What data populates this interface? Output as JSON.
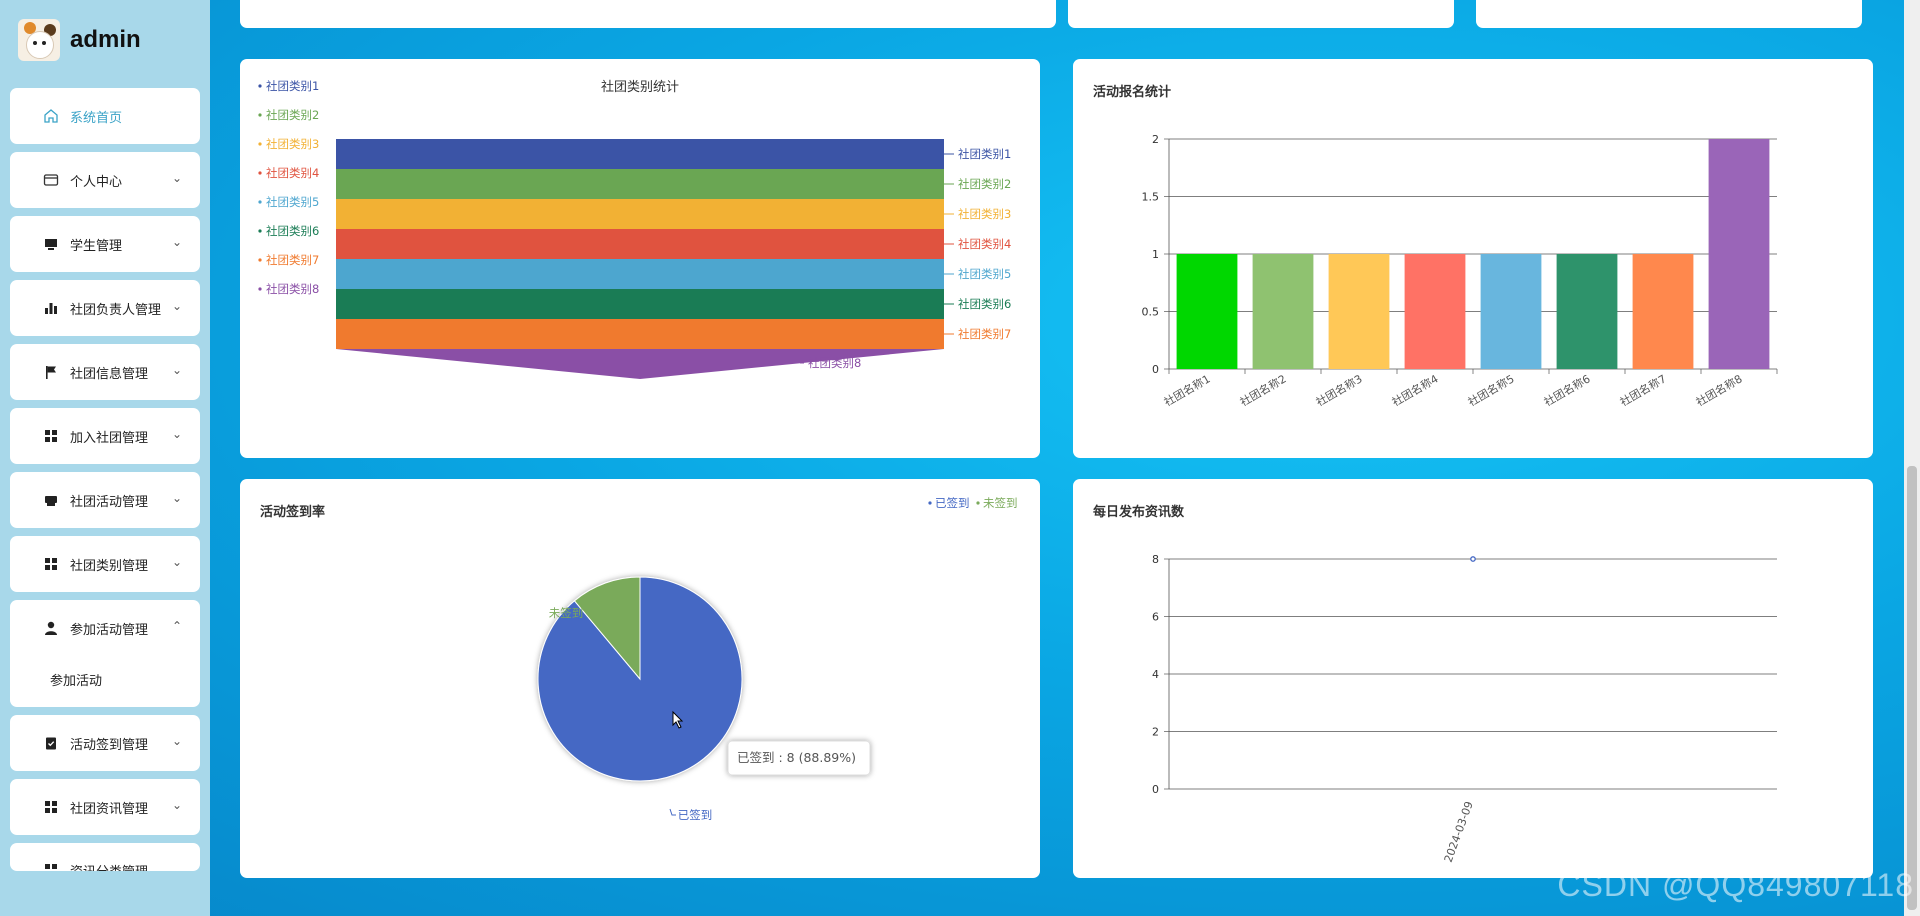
{
  "brand": {
    "name": "admin"
  },
  "menu": [
    {
      "label": "系统首页",
      "icon": "home-icon",
      "active": true
    },
    {
      "label": "个人中心",
      "icon": "card-icon"
    },
    {
      "label": "学生管理",
      "icon": "monitor-icon"
    },
    {
      "label": "社团负责人管理",
      "icon": "bar-chart-icon"
    },
    {
      "label": "社团信息管理",
      "icon": "flag-icon"
    },
    {
      "label": "加入社团管理",
      "icon": "grid-icon"
    },
    {
      "label": "社团活动管理",
      "icon": "printer-icon"
    },
    {
      "label": "社团类别管理",
      "icon": "grid-icon"
    },
    {
      "label": "参加活动管理",
      "icon": "user-icon",
      "open": true,
      "sub": "参加活动"
    },
    {
      "label": "活动签到管理",
      "icon": "clipboard-check-icon"
    },
    {
      "label": "社团资讯管理",
      "icon": "grid-icon"
    },
    {
      "label": "资讯分类管理",
      "icon": "grid-icon"
    }
  ],
  "funnel": {
    "title": "社团类别统计",
    "chart_data": {
      "type": "funnel",
      "categories": [
        "社团类别1",
        "社团类别2",
        "社团类别3",
        "社团类别4",
        "社团类别5",
        "社团类别6",
        "社团类别7",
        "社团类别8"
      ],
      "colors": [
        "#3b54a6",
        "#6aa653",
        "#f2b134",
        "#e0533f",
        "#4da6cf",
        "#1a7c55",
        "#f07a2e",
        "#8a4fa6"
      ]
    }
  },
  "bar": {
    "title": "活动报名统计",
    "chart_data": {
      "type": "bar",
      "categories": [
        "社团名称1",
        "社团名称2",
        "社团名称3",
        "社团名称4",
        "社团名称5",
        "社团名称6",
        "社团名称7",
        "社团名称8"
      ],
      "values": [
        1,
        1,
        1,
        1,
        1,
        1,
        1,
        2
      ],
      "ylim": [
        0,
        2
      ],
      "yticks": [
        "0",
        "0.5",
        "1",
        "1.5",
        "2"
      ],
      "colors": [
        "#00d700",
        "#8fc270",
        "#ffc857",
        "#ff7265",
        "#68b6de",
        "#2e936b",
        "#ff884d",
        "#9a65b8"
      ]
    }
  },
  "pie": {
    "title": "活动签到率",
    "legend": [
      "已签到",
      "未签到"
    ],
    "tooltip": "已签到 : 8 (88.89%)",
    "chart_data": {
      "type": "pie",
      "labels": [
        "已签到",
        "未签到"
      ],
      "values": [
        8,
        1
      ],
      "colors": [
        "#4468c4",
        "#7aaa5a"
      ]
    }
  },
  "line": {
    "title": "每日发布资讯数",
    "chart_data": {
      "type": "line",
      "x": [
        "2024-03-09"
      ],
      "values": [
        8
      ],
      "ylim": [
        0,
        8
      ],
      "yticks": [
        "0",
        "2",
        "4",
        "6",
        "8"
      ]
    }
  },
  "watermark": "CSDN @QQ849807118"
}
